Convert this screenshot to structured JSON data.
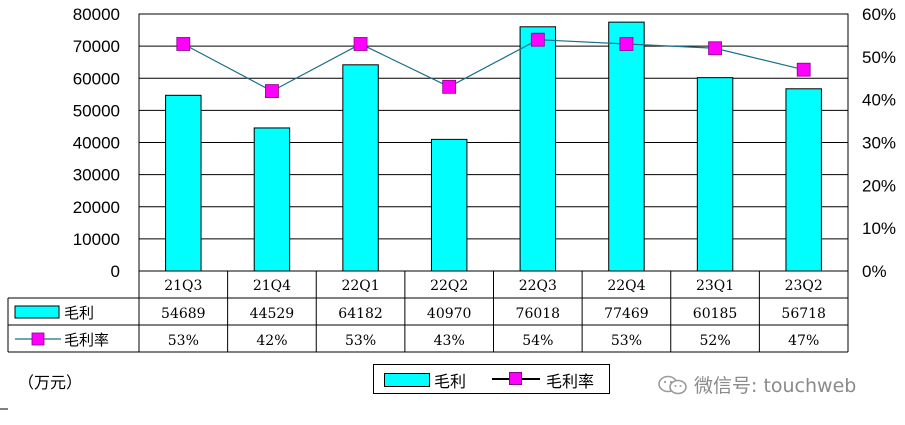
{
  "chart_data": {
    "type": "bar",
    "categories": [
      "21Q3",
      "21Q4",
      "22Q1",
      "22Q2",
      "22Q3",
      "22Q4",
      "23Q1",
      "23Q2"
    ],
    "series": [
      {
        "name": "毛利",
        "type": "bar",
        "axis": "left",
        "color": "#00ffff",
        "values": [
          54689,
          44529,
          64182,
          40970,
          76018,
          77469,
          60185,
          56718
        ]
      },
      {
        "name": "毛利率",
        "type": "line",
        "axis": "right",
        "color": "#ff00ff",
        "values": [
          53,
          42,
          53,
          43,
          54,
          53,
          52,
          47
        ],
        "labels": [
          "53%",
          "42%",
          "53%",
          "43%",
          "54%",
          "53%",
          "52%",
          "47%"
        ]
      }
    ],
    "y_left": {
      "min": 0,
      "max": 80000,
      "ticks": [
        "0",
        "10000",
        "20000",
        "30000",
        "40000",
        "50000",
        "60000",
        "70000",
        "80000"
      ]
    },
    "y_right": {
      "min": 0,
      "max": 60,
      "ticks": [
        "0%",
        "10%",
        "20%",
        "30%",
        "40%",
        "50%",
        "60%"
      ]
    },
    "unit_label": "（万元）",
    "grid": true,
    "legend_position": "bottom",
    "data_table": true
  },
  "legend": {
    "bar_label": "毛利",
    "line_label": "毛利率"
  },
  "watermark": "微信号: touchweb"
}
